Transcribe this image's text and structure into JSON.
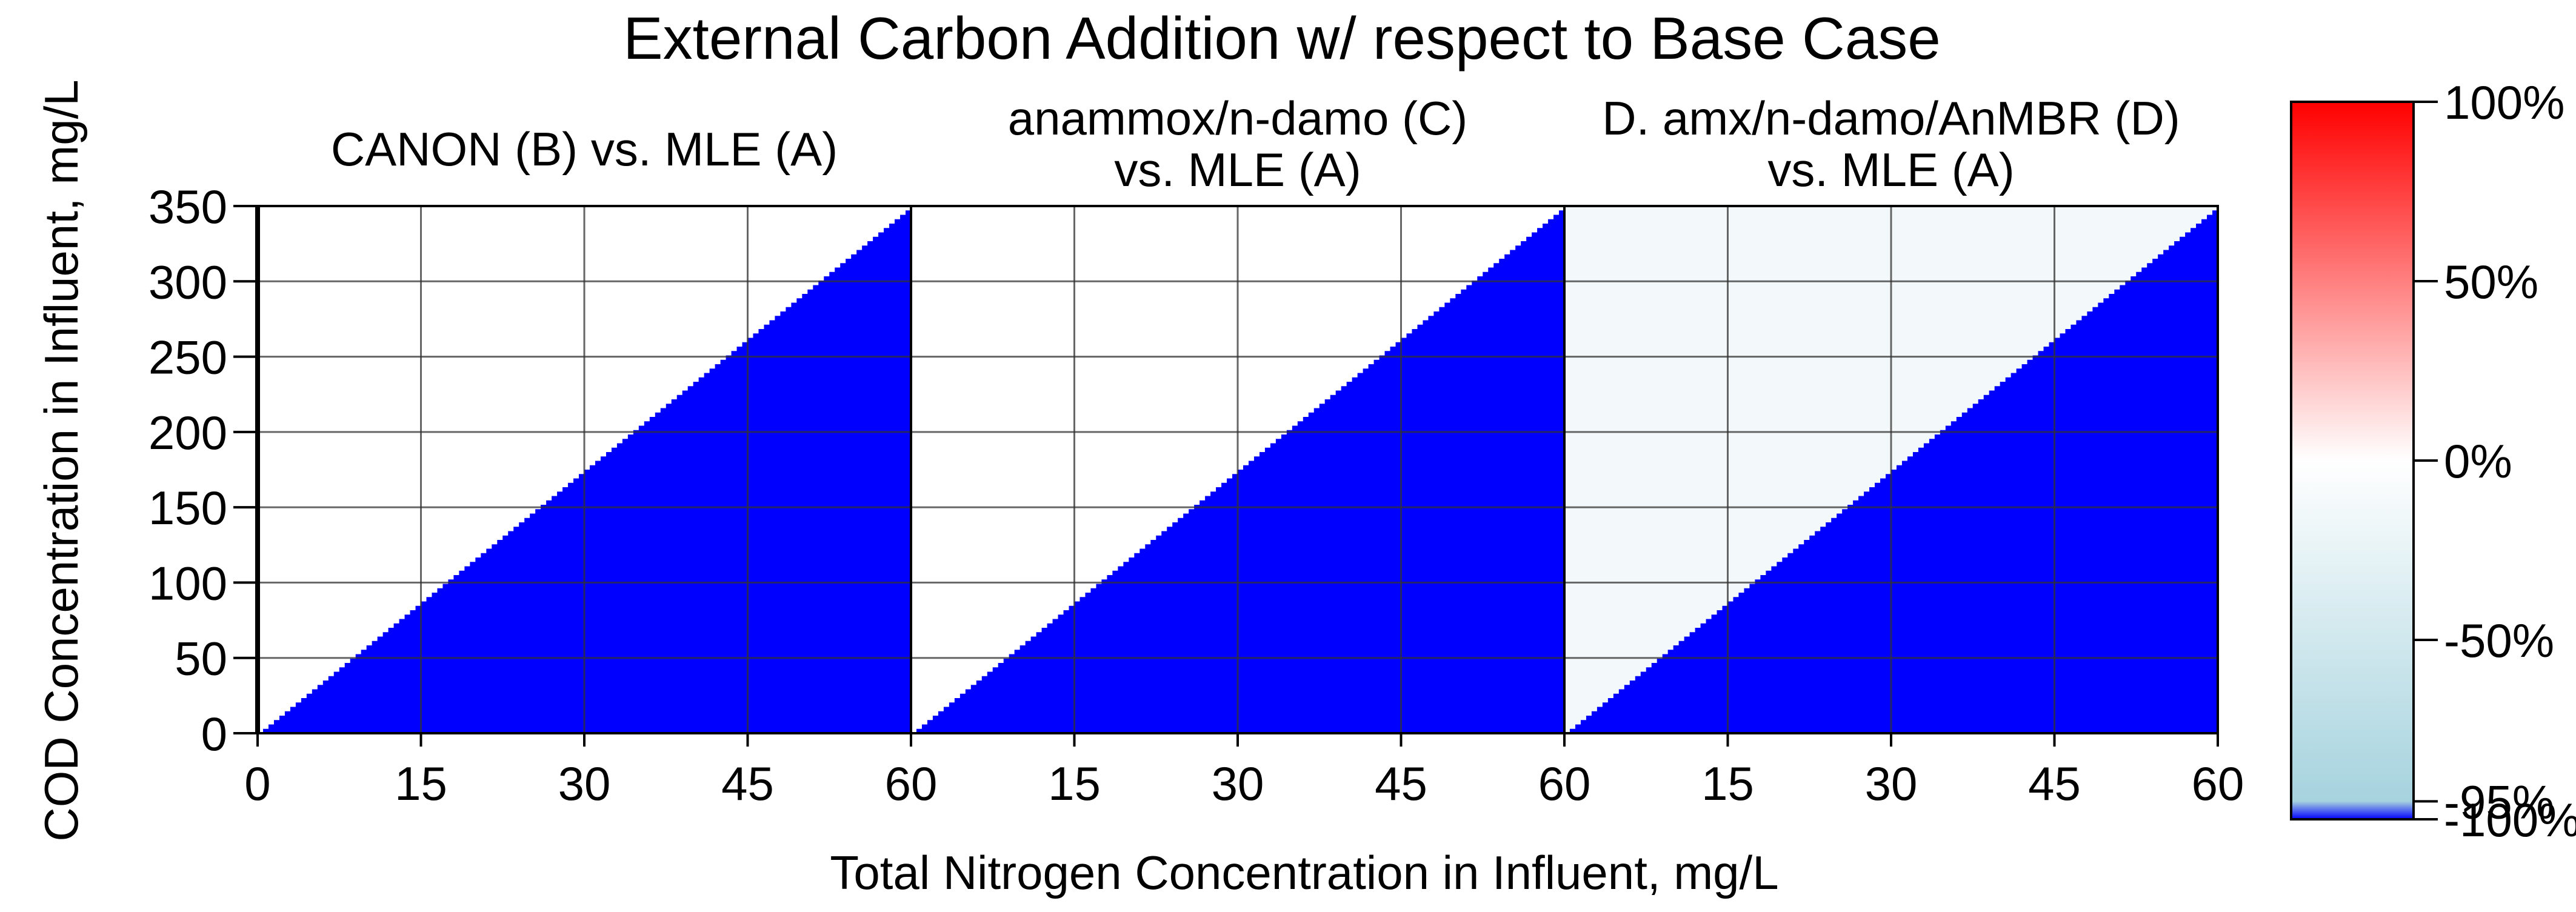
{
  "chart_data": {
    "type": "heatmap",
    "title": "External Carbon Addition w/ respect to Base Case",
    "xlabel": "Total Nitrogen Concentration in Influent, mg/L",
    "ylabel": "COD Concentration in Influent, mg/L",
    "xlim": [
      0,
      60
    ],
    "ylim": [
      0,
      350
    ],
    "x_ticks": [
      "0",
      "15",
      "30",
      "45",
      "60"
    ],
    "y_ticks": [
      "0",
      "50",
      "100",
      "150",
      "200",
      "250",
      "300",
      "350"
    ],
    "grid": true,
    "panels": [
      {
        "title_lines": [
          "CANON (B) vs. MLE (A)"
        ],
        "regions": [
          {
            "label": "upper-left (above boundary)",
            "value_percent": 0,
            "color": "#ffffff"
          },
          {
            "label": "lower-right (below boundary)",
            "value_percent": -100,
            "color": "#0000ff"
          }
        ],
        "boundary": {
          "x": [
            0,
            60
          ],
          "y": [
            0,
            350
          ]
        }
      },
      {
        "title_lines": [
          "anammox/n-damo (C)",
          "vs. MLE (A)"
        ],
        "regions": [
          {
            "label": "upper-left (above boundary)",
            "value_percent": 0,
            "color": "#ffffff"
          },
          {
            "label": "lower-right (below boundary)",
            "value_percent": -100,
            "color": "#0000ff"
          }
        ],
        "boundary": {
          "x": [
            0,
            60
          ],
          "y": [
            0,
            350
          ]
        }
      },
      {
        "title_lines": [
          "D. amx/n-damo/AnMBR (D)",
          "vs. MLE (A)"
        ],
        "regions": [
          {
            "label": "upper-left (above boundary)",
            "value_percent": -5,
            "color": "#f3f9fb"
          },
          {
            "label": "lower-right (below boundary)",
            "value_percent": -100,
            "color": "#0000ff"
          }
        ],
        "boundary": {
          "x": [
            0,
            60
          ],
          "y": [
            0,
            350
          ]
        }
      }
    ],
    "colorbar": {
      "ticks": [
        "100%",
        "50%",
        "0%",
        "-50%",
        "-95%",
        "-100%"
      ],
      "tick_values": [
        100,
        50,
        0,
        -50,
        -95,
        -100
      ],
      "stops": [
        {
          "value": 100,
          "color": "#ff0000"
        },
        {
          "value": 0,
          "color": "#ffffff"
        },
        {
          "value": -95,
          "color": "#a6d3de"
        },
        {
          "value": -100,
          "color": "#0000ff"
        }
      ]
    }
  }
}
